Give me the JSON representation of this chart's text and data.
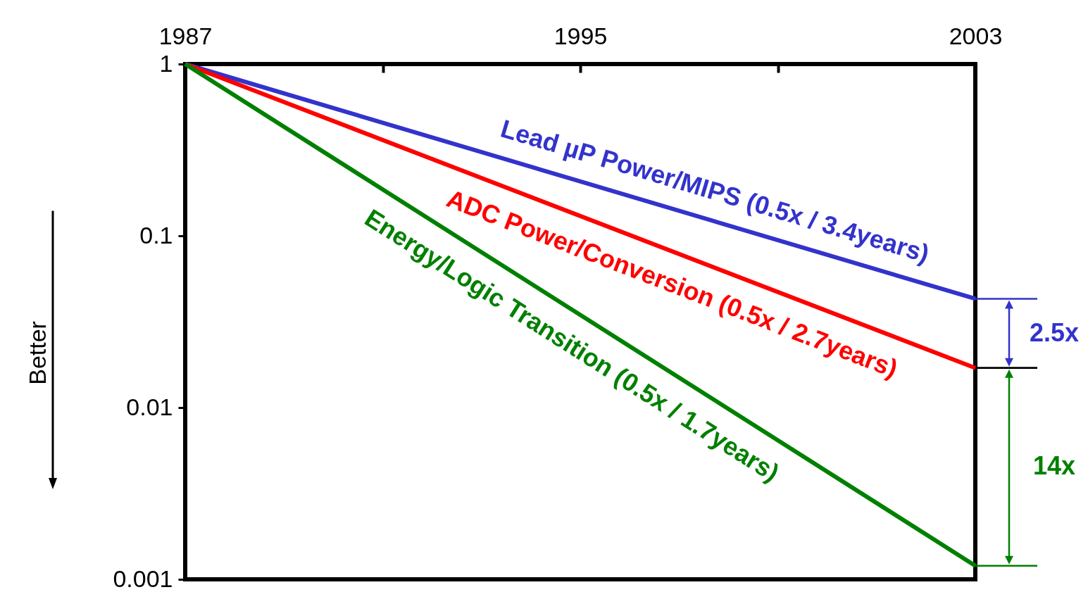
{
  "chart_data": {
    "type": "line",
    "ylabel": "Better",
    "xlim": [
      1987,
      2003
    ],
    "xticks": [
      1987,
      {
        "value": 1991,
        "label": null
      },
      1995,
      {
        "value": 1999,
        "label": null
      },
      2003
    ],
    "ylim": [
      0.001,
      1
    ],
    "yticks": [
      0.001,
      0.01,
      0.1,
      1
    ],
    "log": true,
    "x": [
      1987,
      2003
    ],
    "series": [
      {
        "name": "Lead µP Power/MIPS (0.5x / 3.4years)",
        "color": "#3333cc",
        "values": [
          1,
          0.043
        ]
      },
      {
        "name": "ADC Power/Conversion (0.5x / 2.7years)",
        "color": "#ff0000",
        "values": [
          1,
          0.017
        ]
      },
      {
        "name": "Energy/Logic Transition (0.5x / 1.7years)",
        "color": "#008000",
        "values": [
          1,
          0.0012
        ]
      }
    ],
    "annotations": [
      "2.5x",
      "14x"
    ]
  }
}
